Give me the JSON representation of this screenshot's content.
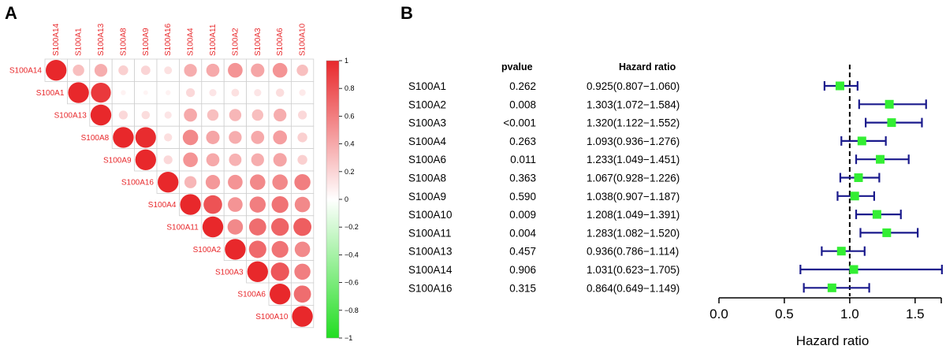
{
  "panels": {
    "a_label": "A",
    "b_label": "B"
  },
  "colors": {
    "positive": "#e8282b",
    "negative": "#22dd22",
    "neutral": "#ffffff",
    "ci_line": "#1a1a8c",
    "marker": "#33ee33",
    "label_text": "#e8282b"
  },
  "chart_data": [
    {
      "type": "heatmap",
      "variant": "correlation-circles-upper-triangle",
      "variables": [
        "S100A14",
        "S100A1",
        "S100A13",
        "S100A8",
        "S100A9",
        "S100A16",
        "S100A4",
        "S100A11",
        "S100A2",
        "S100A3",
        "S100A6",
        "S100A10"
      ],
      "matrix": [
        [
          1,
          0.3,
          0.38,
          0.22,
          0.2,
          0.14,
          0.38,
          0.4,
          0.5,
          0.42,
          0.5,
          0.3
        ],
        [
          null,
          1,
          0.92,
          0.06,
          0.05,
          0.06,
          0.18,
          0.12,
          0.14,
          0.12,
          0.16,
          0.1
        ],
        [
          null,
          null,
          1,
          0.18,
          0.16,
          0.12,
          0.4,
          0.3,
          0.34,
          0.3,
          0.38,
          0.18
        ],
        [
          null,
          null,
          null,
          1,
          0.98,
          0.15,
          0.55,
          0.42,
          0.38,
          0.4,
          0.45,
          0.22
        ],
        [
          null,
          null,
          null,
          null,
          1,
          0.18,
          0.5,
          0.4,
          0.36,
          0.38,
          0.42,
          0.22
        ],
        [
          null,
          null,
          null,
          null,
          null,
          1,
          0.34,
          0.48,
          0.5,
          0.55,
          0.55,
          0.6
        ],
        [
          null,
          null,
          null,
          null,
          null,
          null,
          1,
          0.8,
          0.5,
          0.6,
          0.65,
          0.55
        ],
        [
          null,
          null,
          null,
          null,
          null,
          null,
          null,
          1,
          0.55,
          0.68,
          0.72,
          0.75
        ],
        [
          null,
          null,
          null,
          null,
          null,
          null,
          null,
          null,
          1,
          0.7,
          0.65,
          0.55
        ],
        [
          null,
          null,
          null,
          null,
          null,
          null,
          null,
          null,
          null,
          1,
          0.78,
          0.6
        ],
        [
          null,
          null,
          null,
          null,
          null,
          null,
          null,
          null,
          null,
          null,
          1,
          0.68
        ],
        [
          null,
          null,
          null,
          null,
          null,
          null,
          null,
          null,
          null,
          null,
          null,
          1
        ]
      ],
      "colorbar": {
        "ticks": [
          "1",
          "0.8",
          "0.6",
          "0.4",
          "0.2",
          "0",
          "−0.2",
          "−0.4",
          "−0.6",
          "−0.8",
          "−1"
        ],
        "range": [
          -1,
          1
        ]
      }
    },
    {
      "type": "scatter",
      "variant": "forest-plot",
      "col_pvalue_header": "pvalue",
      "col_hr_header": "Hazard ratio",
      "xlabel": "Hazard ratio",
      "xlim": [
        0.0,
        1.7
      ],
      "xticks": [
        "0.0",
        "0.5",
        "1.0",
        "1.5"
      ],
      "xtick_values": [
        0.0,
        0.5,
        1.0,
        1.5
      ],
      "reference_line": 1.0,
      "rows": [
        {
          "gene": "S100A1",
          "pvalue": "0.262",
          "hr_text": "0.925(0.807−1.060)",
          "hr": 0.925,
          "lo": 0.807,
          "hi": 1.06
        },
        {
          "gene": "S100A2",
          "pvalue": "0.008",
          "hr_text": "1.303(1.072−1.584)",
          "hr": 1.303,
          "lo": 1.072,
          "hi": 1.584
        },
        {
          "gene": "S100A3",
          "pvalue": "<0.001",
          "hr_text": "1.320(1.122−1.552)",
          "hr": 1.32,
          "lo": 1.122,
          "hi": 1.552
        },
        {
          "gene": "S100A4",
          "pvalue": "0.263",
          "hr_text": "1.093(0.936−1.276)",
          "hr": 1.093,
          "lo": 0.936,
          "hi": 1.276
        },
        {
          "gene": "S100A6",
          "pvalue": "0.011",
          "hr_text": "1.233(1.049−1.451)",
          "hr": 1.233,
          "lo": 1.049,
          "hi": 1.451
        },
        {
          "gene": "S100A8",
          "pvalue": "0.363",
          "hr_text": "1.067(0.928−1.226)",
          "hr": 1.067,
          "lo": 0.928,
          "hi": 1.226
        },
        {
          "gene": "S100A9",
          "pvalue": "0.590",
          "hr_text": "1.038(0.907−1.187)",
          "hr": 1.038,
          "lo": 0.907,
          "hi": 1.187
        },
        {
          "gene": "S100A10",
          "pvalue": "0.009",
          "hr_text": "1.208(1.049−1.391)",
          "hr": 1.208,
          "lo": 1.049,
          "hi": 1.391
        },
        {
          "gene": "S100A11",
          "pvalue": "0.004",
          "hr_text": "1.283(1.082−1.520)",
          "hr": 1.283,
          "lo": 1.082,
          "hi": 1.52
        },
        {
          "gene": "S100A13",
          "pvalue": "0.457",
          "hr_text": "0.936(0.786−1.114)",
          "hr": 0.936,
          "lo": 0.786,
          "hi": 1.114
        },
        {
          "gene": "S100A14",
          "pvalue": "0.906",
          "hr_text": "1.031(0.623−1.705)",
          "hr": 1.031,
          "lo": 0.623,
          "hi": 1.705
        },
        {
          "gene": "S100A16",
          "pvalue": "0.315",
          "hr_text": "0.864(0.649−1.149)",
          "hr": 0.864,
          "lo": 0.649,
          "hi": 1.149
        }
      ]
    }
  ]
}
